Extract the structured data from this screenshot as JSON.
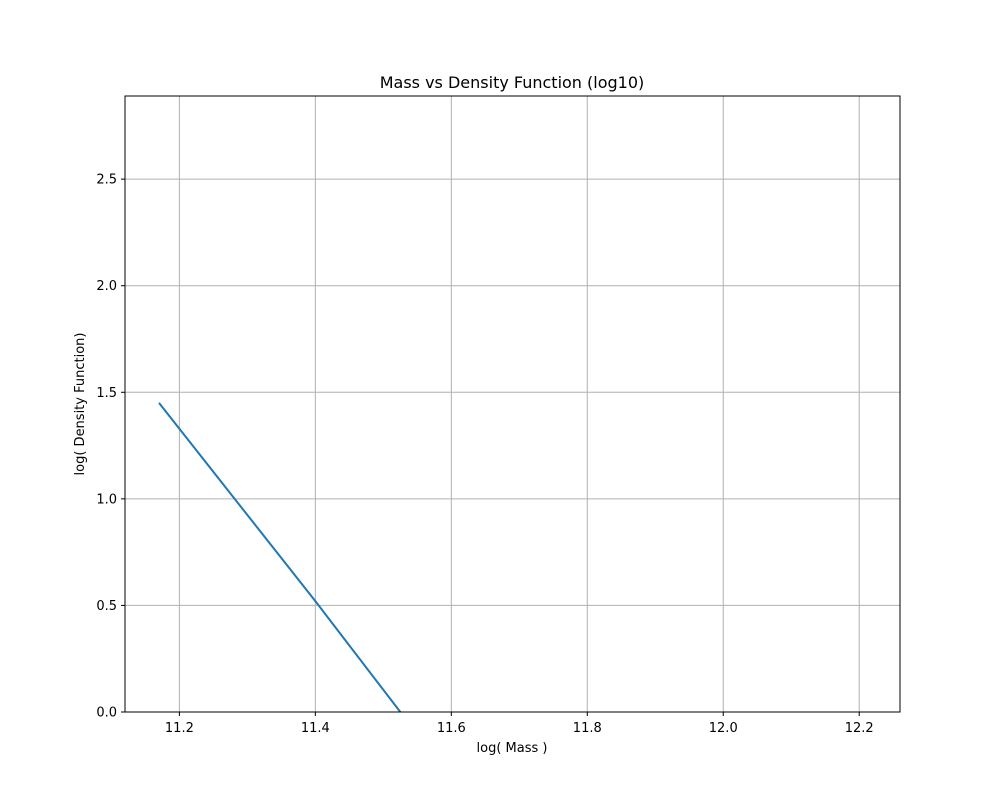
{
  "chart_data": {
    "type": "line",
    "title": "Mass vs Density Function (log10)",
    "xlabel": "log( Mass )",
    "ylabel": "log( Density Function)",
    "xlim": [
      11.12,
      12.26
    ],
    "ylim": [
      0.0,
      2.89
    ],
    "xticks": [
      11.2,
      11.4,
      11.6,
      11.8,
      12.0,
      12.2
    ],
    "xtick_labels": [
      "11.2",
      "11.4",
      "11.6",
      "11.8",
      "12.0",
      "12.2"
    ],
    "yticks": [
      0.0,
      0.5,
      1.0,
      1.5,
      2.0,
      2.5
    ],
    "ytick_labels": [
      "0.0",
      "0.5",
      "1.0",
      "1.5",
      "2.0",
      "2.5"
    ],
    "grid": true,
    "series": [
      {
        "color": "#1f77b4",
        "x": [
          11.17,
          11.4,
          11.525
        ],
        "y": [
          1.45,
          0.52,
          0.0
        ]
      }
    ]
  }
}
